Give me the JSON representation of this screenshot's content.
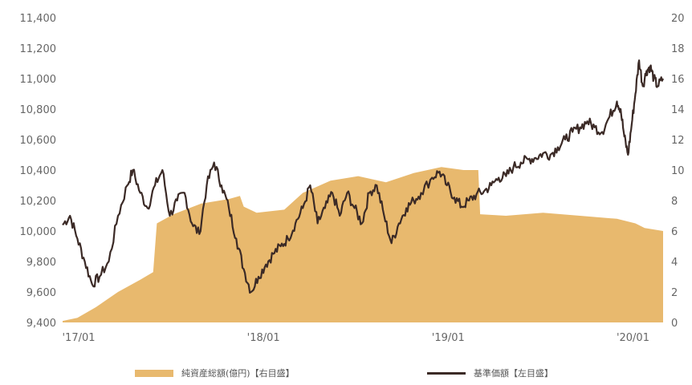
{
  "chart_data": {
    "type": "area+line",
    "categories": [
      "'17/01",
      "'18/01",
      "'19/01",
      "'20/01"
    ],
    "left_axis": {
      "ticks": [
        "9,400",
        "9,600",
        "9,800",
        "10,000",
        "10,200",
        "10,400",
        "10,600",
        "10,800",
        "11,000",
        "11,200",
        "11,400"
      ],
      "ylim": [
        9400,
        11400
      ]
    },
    "right_axis": {
      "ticks": [
        "0",
        "2",
        "4",
        "6",
        "8",
        "10",
        "12",
        "14",
        "16",
        "18",
        "20"
      ],
      "ylim": [
        0,
        20
      ]
    },
    "grid": false,
    "colors": {
      "area": "#e8b96e",
      "line": "#3b2a26"
    },
    "series": [
      {
        "name": "純資産総額(億円)【右目盛】",
        "axis": "right",
        "chart": "area",
        "x": [
          2017.0,
          2017.08,
          2017.18,
          2017.3,
          2017.42,
          2017.49,
          2017.51,
          2017.6,
          2017.75,
          2017.9,
          2017.96,
          2017.98,
          2018.05,
          2018.2,
          2018.3,
          2018.45,
          2018.6,
          2018.75,
          2018.9,
          2019.05,
          2019.17,
          2019.25,
          2019.26,
          2019.4,
          2019.6,
          2019.8,
          2020.0,
          2020.1,
          2020.15,
          2020.2,
          2020.25
        ],
        "values": [
          0.1,
          0.3,
          1.0,
          2.0,
          2.8,
          3.3,
          6.5,
          7.1,
          7.8,
          8.1,
          8.3,
          7.6,
          7.2,
          7.4,
          8.5,
          9.3,
          9.6,
          9.2,
          9.8,
          10.2,
          10.0,
          10.0,
          7.1,
          7.0,
          7.2,
          7.0,
          6.8,
          6.5,
          6.2,
          6.1,
          6.0
        ]
      },
      {
        "name": "基準価額【左目盛】",
        "axis": "left",
        "chart": "line",
        "x": [
          2017.0,
          2017.04,
          2017.08,
          2017.12,
          2017.16,
          2017.2,
          2017.25,
          2017.3,
          2017.35,
          2017.38,
          2017.42,
          2017.46,
          2017.5,
          2017.54,
          2017.58,
          2017.62,
          2017.66,
          2017.7,
          2017.74,
          2017.78,
          2017.82,
          2017.86,
          2017.9,
          2017.94,
          2017.98,
          2018.02,
          2018.06,
          2018.1,
          2018.14,
          2018.18,
          2018.22,
          2018.26,
          2018.3,
          2018.34,
          2018.38,
          2018.42,
          2018.46,
          2018.5,
          2018.54,
          2018.58,
          2018.62,
          2018.66,
          2018.7,
          2018.74,
          2018.78,
          2018.82,
          2018.86,
          2018.9,
          2018.94,
          2019.0,
          2019.04,
          2019.08,
          2019.12,
          2019.16,
          2019.2,
          2019.24,
          2019.28,
          2019.32,
          2019.36,
          2019.4,
          2019.44,
          2019.48,
          2019.52,
          2019.56,
          2019.6,
          2019.64,
          2019.68,
          2019.72,
          2019.76,
          2019.8,
          2019.84,
          2019.88,
          2019.92,
          2019.96,
          2020.0,
          2020.02,
          2020.04,
          2020.06,
          2020.08,
          2020.1,
          2020.12,
          2020.14,
          2020.16,
          2020.18,
          2020.2,
          2020.22,
          2020.25
        ],
        "values": [
          10040,
          10100,
          9950,
          9800,
          9650,
          9700,
          9800,
          10100,
          10300,
          10400,
          10250,
          10150,
          10300,
          10400,
          10100,
          10200,
          10250,
          10050,
          9980,
          10300,
          10450,
          10300,
          10150,
          9950,
          9750,
          9600,
          9700,
          9780,
          9850,
          9900,
          9950,
          10050,
          10150,
          10300,
          10050,
          10150,
          10250,
          10100,
          10250,
          10150,
          10050,
          10250,
          10300,
          10100,
          9920,
          10050,
          10150,
          10200,
          10250,
          10350,
          10390,
          10300,
          10220,
          10160,
          10200,
          10240,
          10260,
          10300,
          10350,
          10360,
          10420,
          10450,
          10470,
          10480,
          10510,
          10500,
          10550,
          10600,
          10650,
          10680,
          10720,
          10680,
          10650,
          10750,
          10850,
          10800,
          10620,
          10500,
          10700,
          10900,
          11120,
          10950,
          11050,
          11080,
          11000,
          10950,
          11000
        ]
      }
    ],
    "x_ticks": [
      {
        "label": "'17/01",
        "x": 2017.0
      },
      {
        "label": "'18/01",
        "x": 2018.0
      },
      {
        "label": "'19/01",
        "x": 2019.0
      },
      {
        "label": "'20/01",
        "x": 2020.0
      }
    ],
    "xlim": [
      2017.0,
      2020.25
    ],
    "legend": {
      "placement": "bottom"
    }
  }
}
